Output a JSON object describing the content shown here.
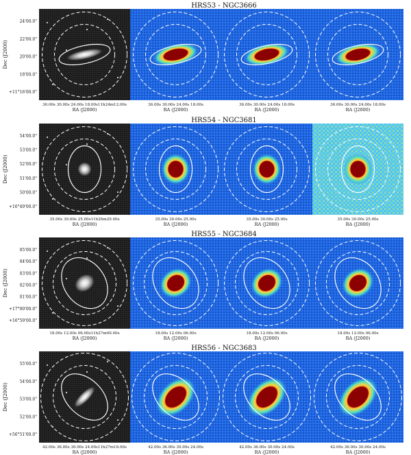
{
  "figure": {
    "rows": [
      {
        "title": "HRS53 - NGC3666",
        "ylabel": "Dec (J2000)",
        "xlabel": "RA (J2000)",
        "optical_yticks": [
          "24'00.0\"",
          "22'00.0\"",
          "20'00.0\"",
          "18'00.0\"",
          "+11°16'00.0\""
        ],
        "optical_xticks": "36.00s  30.00s  24.00s  18.00s11h24m12.00s",
        "ir_xticks": [
          "36.00s 30.00s 24.00s 18.00s",
          "36.00s 30.00s 24.00s 18.00s",
          "36.00s 30.00s 24.00s 18.00s"
        ],
        "galaxy": "edge-on"
      },
      {
        "title": "HRS54 - NGC3681",
        "ylabel": "Dec (J2000)",
        "xlabel": "RA (J2000)",
        "optical_yticks": [
          "54'00.0\"",
          "53'00.0\"",
          "52'00.0\"",
          "51'00.0\"",
          "50'00.0\"",
          "+16°49'00.0\""
        ],
        "optical_xticks": "35.00s  30.00s  25.00s11h26m20.00s",
        "ir_xticks": [
          "35.00s 30.00s 25.00s",
          "35.00s 30.00s 25.00s",
          "35.00s 30.00s 25.00s"
        ],
        "galaxy": "round"
      },
      {
        "title": "HRS55 - NGC3684",
        "ylabel": "Dec (J2000)",
        "xlabel": "RA (J2000)",
        "optical_yticks": [
          "05'00.0\"",
          "04'00.0\"",
          "03'00.0\"",
          "02'00.0\"",
          "01'00.0\"",
          "+17°00'00.0\"",
          "+16°59'00.0\""
        ],
        "optical_xticks": "18.00s  12.00s  06.00s11h27m00.00s",
        "ir_xticks": [
          "18.00s 12.00s 06.00s",
          "18.00s 12.00s 06.00s",
          "18.00s 12.00s 06.00s"
        ],
        "galaxy": "tilted"
      },
      {
        "title": "HRS56 - NGC3683",
        "ylabel": "Dec (J2000)",
        "xlabel": "RA (J2000)",
        "optical_yticks": [
          "55'00.0\"",
          "54'00.0\"",
          "53'00.0\"",
          "52'00.0\"",
          "+56°51'00.0\""
        ],
        "optical_xticks": "42.00s  36.00s  30.00s  24.00s11h27m18.00s",
        "ir_xticks": [
          "42.00s 36.00s 30.00s 24.00s",
          "42.00s 36.00s 30.00s 24.00s",
          "42.00s 36.00s 30.00s 24.00s"
        ],
        "galaxy": "tilted-elongated"
      }
    ],
    "colors": {
      "optical_bg": "#1c1c1c",
      "ir_bg": "#1f66e0",
      "ir_core": "#8b0000",
      "ir_mid": "#ffd23a",
      "aperture": "#ffffff"
    }
  }
}
